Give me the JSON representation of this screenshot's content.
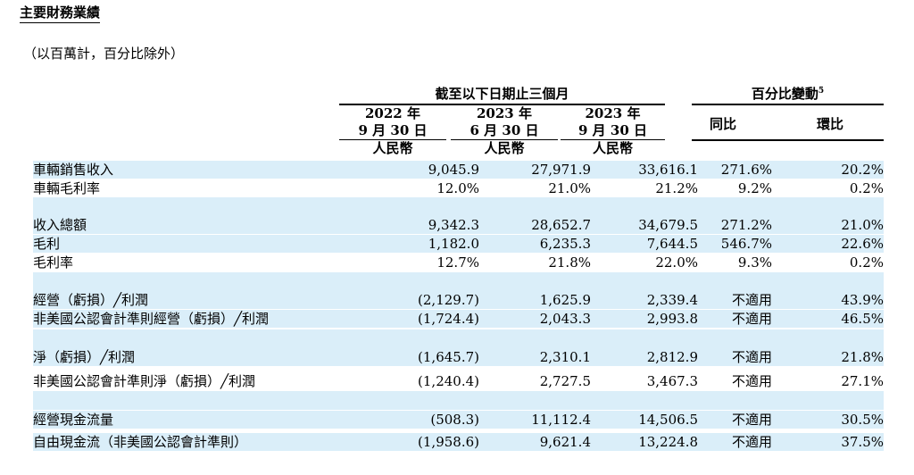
{
  "title": "主要財務業績",
  "unit_note": "（以百萬計，百分比除外）",
  "header": {
    "period_group": "截至以下日期止三個月",
    "change_group": "百分比變動",
    "change_footnote": "5",
    "periods": [
      {
        "year": "2022 年",
        "date": "9 月 30 日",
        "currency": "人民幣"
      },
      {
        "year": "2023 年",
        "date": "6 月 30 日",
        "currency": "人民幣"
      },
      {
        "year": "2023 年",
        "date": "9 月 30 日",
        "currency": "人民幣"
      }
    ],
    "yoy": "同比",
    "qoq": "環比"
  },
  "rows": [
    {
      "label": "車輛銷售收入",
      "values": [
        "9,045.9",
        "27,971.9",
        "33,616.1",
        "271.6%",
        "20.2%"
      ]
    },
    {
      "label": "車輛毛利率",
      "values": [
        "12.0%",
        "21.0%",
        "21.2%",
        "9.2%",
        "0.2%"
      ]
    },
    {
      "label": "收入總額",
      "values": [
        "9,342.3",
        "28,652.7",
        "34,679.5",
        "271.2%",
        "21.0%"
      ]
    },
    {
      "label": "毛利",
      "values": [
        "1,182.0",
        "6,235.3",
        "7,644.5",
        "546.7%",
        "22.6%"
      ]
    },
    {
      "label": "毛利率",
      "values": [
        "12.7%",
        "21.8%",
        "22.0%",
        "9.3%",
        "0.2%"
      ]
    },
    {
      "label": "經營（虧損）╱利潤",
      "values": [
        "(2,129.7)",
        "1,625.9",
        "2,339.4",
        "不適用",
        "43.9%"
      ]
    },
    {
      "label": "非美國公認會計準則經營（虧損）╱利潤",
      "values": [
        "(1,724.4)",
        "2,043.3",
        "2,993.8",
        "不適用",
        "46.5%"
      ]
    },
    {
      "label": "淨（虧損）╱利潤",
      "values": [
        "(1,645.7)",
        "2,310.1",
        "2,812.9",
        "不適用",
        "21.8%"
      ]
    },
    {
      "label": "非美國公認會計準則淨（虧損）╱利潤",
      "values": [
        "(1,240.4)",
        "2,727.5",
        "3,467.3",
        "不適用",
        "27.1%"
      ]
    },
    {
      "label": "經營現金流量",
      "values": [
        "(508.3)",
        "11,112.4",
        "14,506.5",
        "不適用",
        "30.5%"
      ]
    },
    {
      "label": "自由現金流（非美國公認會計準則）",
      "values": [
        "(1,958.6)",
        "9,621.4",
        "13,224.8",
        "不適用",
        "37.5%"
      ]
    }
  ]
}
